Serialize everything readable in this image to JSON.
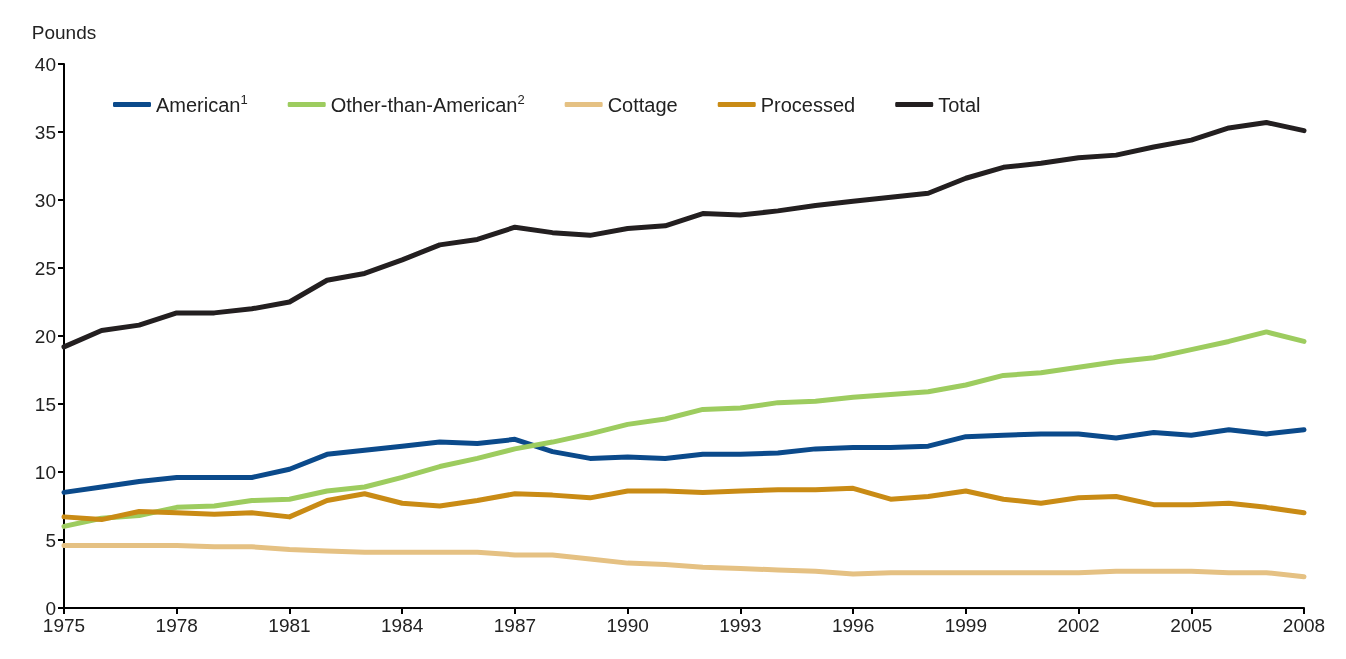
{
  "chart_data": {
    "type": "line",
    "ylabel": "Pounds",
    "x": [
      1975,
      1976,
      1977,
      1978,
      1979,
      1980,
      1981,
      1982,
      1983,
      1984,
      1985,
      1986,
      1987,
      1988,
      1989,
      1990,
      1991,
      1992,
      1993,
      1994,
      1995,
      1996,
      1997,
      1998,
      1999,
      2000,
      2001,
      2002,
      2003,
      2004,
      2005,
      2006,
      2007,
      2008
    ],
    "series": [
      {
        "name": "American$^{1}$",
        "color": "#0b4a8b",
        "values": [
          8.5,
          8.9,
          9.3,
          9.6,
          9.6,
          9.6,
          10.2,
          11.3,
          11.6,
          11.9,
          12.2,
          12.1,
          12.4,
          11.5,
          11.0,
          11.1,
          11.0,
          11.3,
          11.3,
          11.4,
          11.7,
          11.8,
          11.8,
          11.9,
          12.6,
          12.7,
          12.8,
          12.8,
          12.5,
          12.9,
          12.7,
          13.1,
          12.8,
          13.1
        ]
      },
      {
        "name": "Other-than-American$^{2}$",
        "color": "#9dcc5f",
        "values": [
          6.0,
          6.6,
          6.8,
          7.4,
          7.5,
          7.9,
          8.0,
          8.6,
          8.9,
          9.6,
          10.4,
          11.0,
          11.7,
          12.2,
          12.8,
          13.5,
          13.9,
          14.6,
          14.7,
          15.1,
          15.2,
          15.5,
          15.7,
          15.9,
          16.4,
          17.1,
          17.3,
          17.7,
          18.1,
          18.4,
          19.0,
          19.6,
          20.3,
          19.6
        ]
      },
      {
        "name": "Cottage",
        "color": "#e5c183",
        "values": [
          4.6,
          4.6,
          4.6,
          4.6,
          4.5,
          4.5,
          4.3,
          4.2,
          4.1,
          4.1,
          4.1,
          4.1,
          3.9,
          3.9,
          3.6,
          3.3,
          3.2,
          3.0,
          2.9,
          2.8,
          2.7,
          2.5,
          2.6,
          2.6,
          2.6,
          2.6,
          2.6,
          2.6,
          2.7,
          2.7,
          2.7,
          2.6,
          2.6,
          2.3
        ]
      },
      {
        "name": "Processed",
        "color": "#c98b15",
        "values": [
          6.7,
          6.5,
          7.1,
          7.0,
          6.9,
          7.0,
          6.7,
          7.9,
          8.4,
          7.7,
          7.5,
          7.9,
          8.4,
          8.3,
          8.1,
          8.6,
          8.6,
          8.5,
          8.6,
          8.7,
          8.7,
          8.8,
          8.0,
          8.2,
          8.6,
          8.0,
          7.7,
          8.1,
          8.2,
          7.6,
          7.6,
          7.7,
          7.4,
          7.0
        ]
      },
      {
        "name": "Total",
        "color": "#231f20",
        "values": [
          19.2,
          20.4,
          20.8,
          21.7,
          21.7,
          22.0,
          22.5,
          24.1,
          24.6,
          25.6,
          26.7,
          27.1,
          28.0,
          27.6,
          27.4,
          27.9,
          28.1,
          29.0,
          28.9,
          29.2,
          29.6,
          29.9,
          30.2,
          30.5,
          31.6,
          32.4,
          32.7,
          33.1,
          33.3,
          33.9,
          34.4,
          35.3,
          35.7,
          35.1
        ]
      }
    ],
    "xlim": [
      1975,
      2008
    ],
    "xticks": [
      1975,
      1978,
      1981,
      1984,
      1987,
      1990,
      1993,
      1996,
      1999,
      2002,
      2005,
      2008
    ],
    "ylim": [
      0,
      40
    ],
    "yticks": [
      0,
      5,
      10,
      15,
      20,
      25,
      30,
      35,
      40
    ],
    "grid": false,
    "legend": "top left",
    "marker": "none",
    "line_style": "solid"
  }
}
